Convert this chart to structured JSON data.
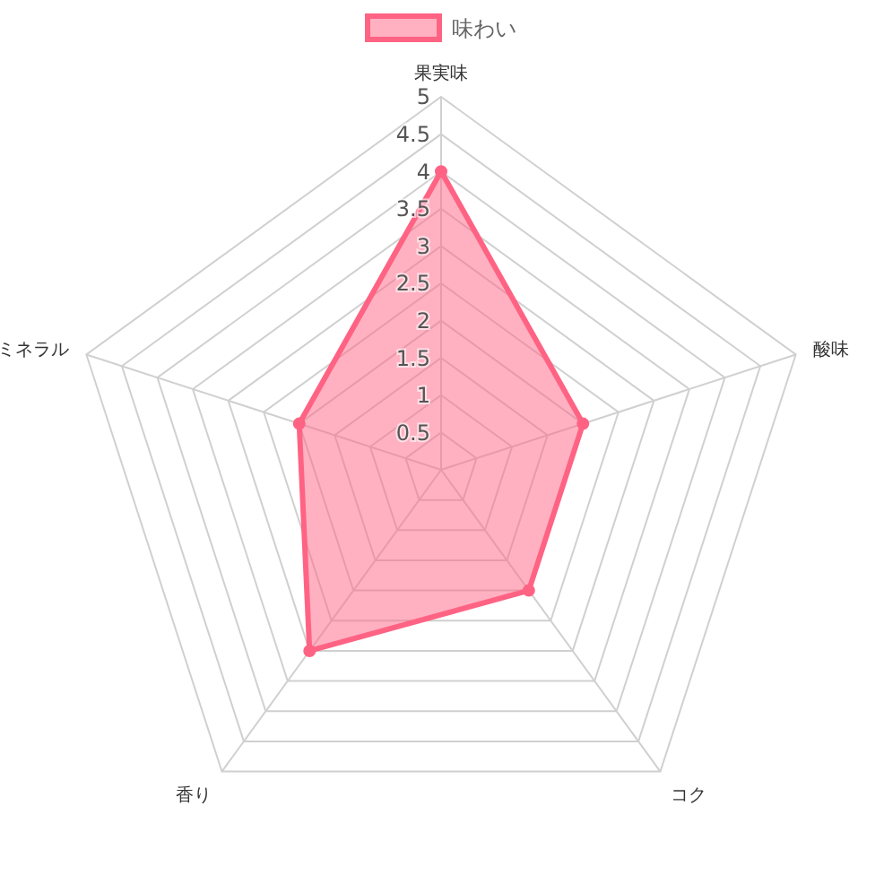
{
  "chart_data": {
    "type": "radar",
    "categories": [
      "果実味",
      "酸味",
      "コク",
      "香り",
      "ミネラル"
    ],
    "series": [
      {
        "name": "味わい",
        "color": "#ff6384",
        "values": [
          4,
          2,
          2,
          3,
          2
        ]
      }
    ],
    "ylim": [
      0,
      5
    ],
    "yticks": [
      0.5,
      1,
      1.5,
      2,
      2.5,
      3,
      3.5,
      4,
      4.5,
      5
    ],
    "grid": true,
    "legend": "top",
    "marker": "circle"
  }
}
